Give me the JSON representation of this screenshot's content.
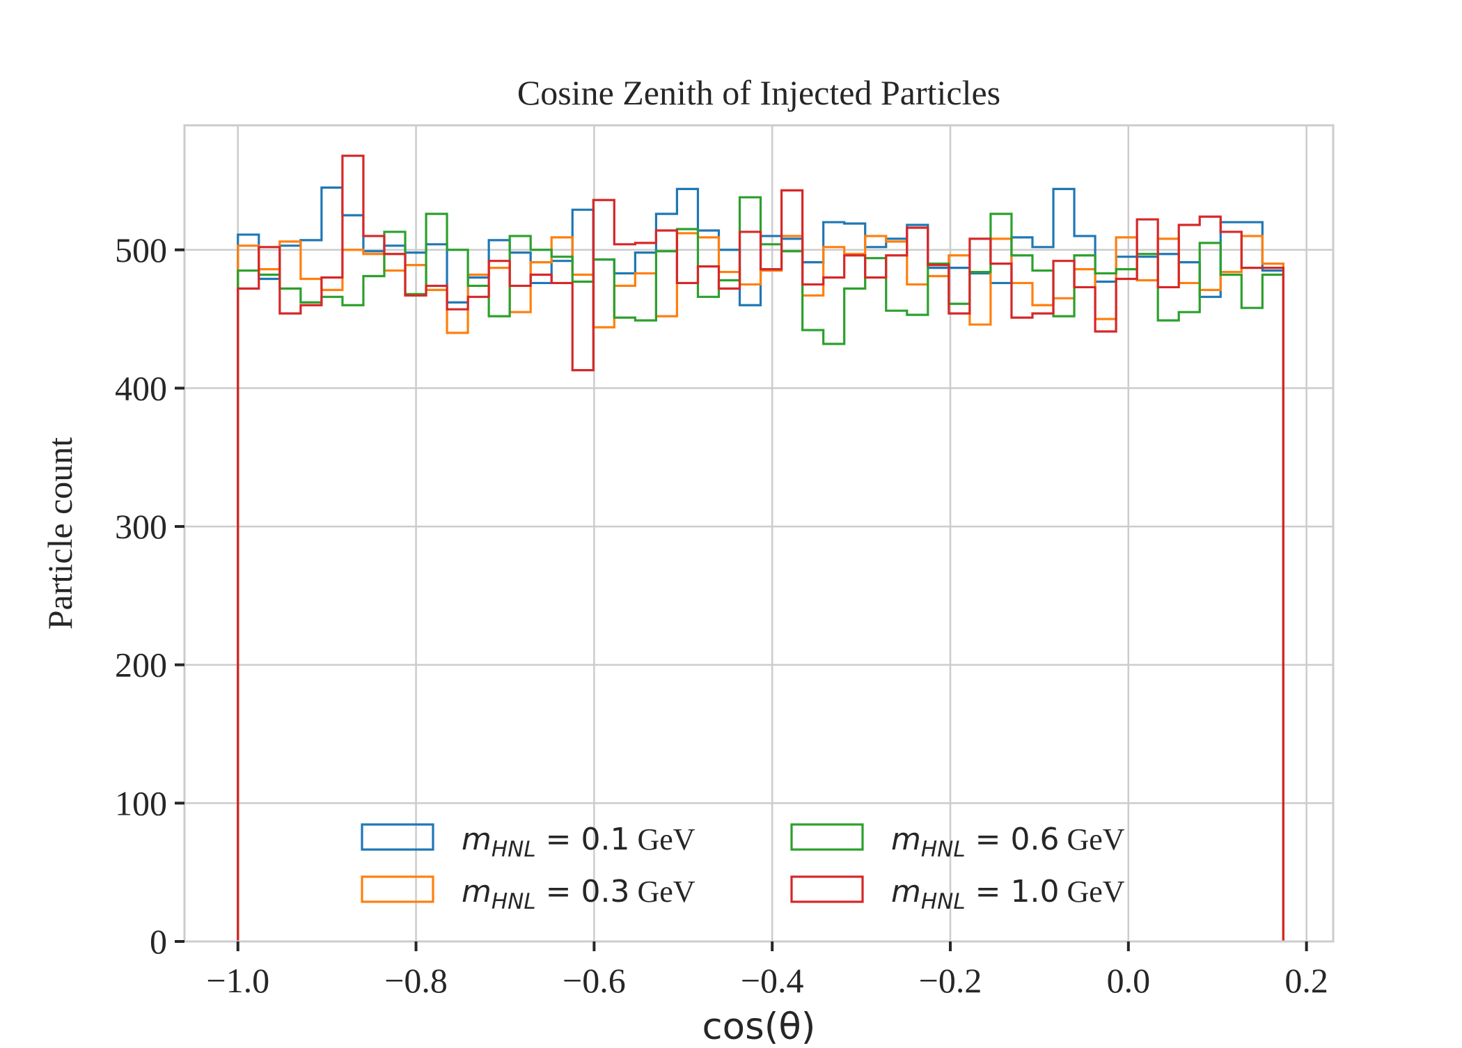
{
  "chart_data": {
    "type": "histogram",
    "title": "Cosine Zenith of Injected Particles",
    "xlabel": "cos(θ)",
    "ylabel": "Particle count",
    "xlim": [
      -1.06,
      0.23
    ],
    "ylim": [
      0,
      590
    ],
    "x_ticks": [
      -1.0,
      -0.8,
      -0.6,
      -0.4,
      -0.2,
      0.0,
      0.2
    ],
    "x_tick_labels": [
      "−1.0",
      "−0.8",
      "−0.6",
      "−0.4",
      "−0.2",
      "0.0",
      "0.2"
    ],
    "y_ticks": [
      0,
      100,
      200,
      300,
      400,
      500
    ],
    "y_tick_labels": [
      "0",
      "100",
      "200",
      "300",
      "400",
      "500"
    ],
    "grid": true,
    "legend_position": "lower center",
    "legend_columns": 2,
    "bin_edges_range": [
      -1.0,
      0.174
    ],
    "bins": 50,
    "series": [
      {
        "name": "m_HNL = 0.1 GeV",
        "label_math_var": "m",
        "label_math_sub": "HNL",
        "label_value": " = 0.1",
        "label_unit": "GeV",
        "color": "#1f77b4",
        "values": [
          511,
          479,
          503,
          507,
          545,
          525,
          499,
          503,
          498,
          504,
          462,
          480,
          507,
          498,
          476,
          492,
          529,
          493,
          483,
          498,
          526,
          544,
          514,
          500,
          460,
          510,
          508,
          491,
          520,
          519,
          502,
          508,
          518,
          487,
          487,
          483,
          476,
          509,
          502,
          544,
          510,
          477,
          495,
          495,
          497,
          491,
          466,
          520,
          520,
          485
        ]
      },
      {
        "name": "m_HNL = 0.3 GeV",
        "label_math_var": "m",
        "label_math_sub": "HNL",
        "label_value": " = 0.3",
        "label_unit": "GeV",
        "color": "#ff7f0e",
        "values": [
          503,
          486,
          506,
          479,
          471,
          500,
          497,
          485,
          489,
          471,
          440,
          482,
          487,
          455,
          491,
          509,
          482,
          444,
          474,
          483,
          452,
          512,
          509,
          484,
          475,
          485,
          510,
          467,
          502,
          497,
          510,
          506,
          475,
          481,
          496,
          446,
          508,
          476,
          460,
          465,
          486,
          450,
          509,
          478,
          508,
          476,
          471,
          484,
          510,
          490
        ]
      },
      {
        "name": "m_HNL = 0.6 GeV",
        "label_math_var": "m",
        "label_math_sub": "HNL",
        "label_value": " = 0.6",
        "label_unit": "GeV",
        "color": "#2ca02c",
        "values": [
          485,
          482,
          472,
          462,
          466,
          460,
          481,
          513,
          468,
          526,
          500,
          474,
          452,
          510,
          500,
          495,
          477,
          493,
          451,
          449,
          499,
          515,
          466,
          478,
          538,
          504,
          499,
          442,
          432,
          472,
          494,
          456,
          453,
          490,
          461,
          484,
          526,
          496,
          485,
          452,
          496,
          483,
          486,
          497,
          449,
          455,
          505,
          482,
          458,
          482
        ]
      },
      {
        "name": "m_HNL = 1.0 GeV",
        "label_math_var": "m",
        "label_math_sub": "HNL",
        "label_value": " = 1.0",
        "label_unit": "GeV",
        "color": "#d62728",
        "values": [
          472,
          502,
          454,
          460,
          480,
          568,
          510,
          497,
          467,
          474,
          457,
          466,
          492,
          474,
          482,
          476,
          413,
          536,
          504,
          505,
          514,
          476,
          488,
          472,
          513,
          486,
          543,
          475,
          480,
          496,
          480,
          496,
          516,
          489,
          454,
          508,
          490,
          451,
          454,
          492,
          473,
          441,
          479,
          522,
          473,
          518,
          524,
          513,
          487,
          487
        ]
      }
    ]
  }
}
